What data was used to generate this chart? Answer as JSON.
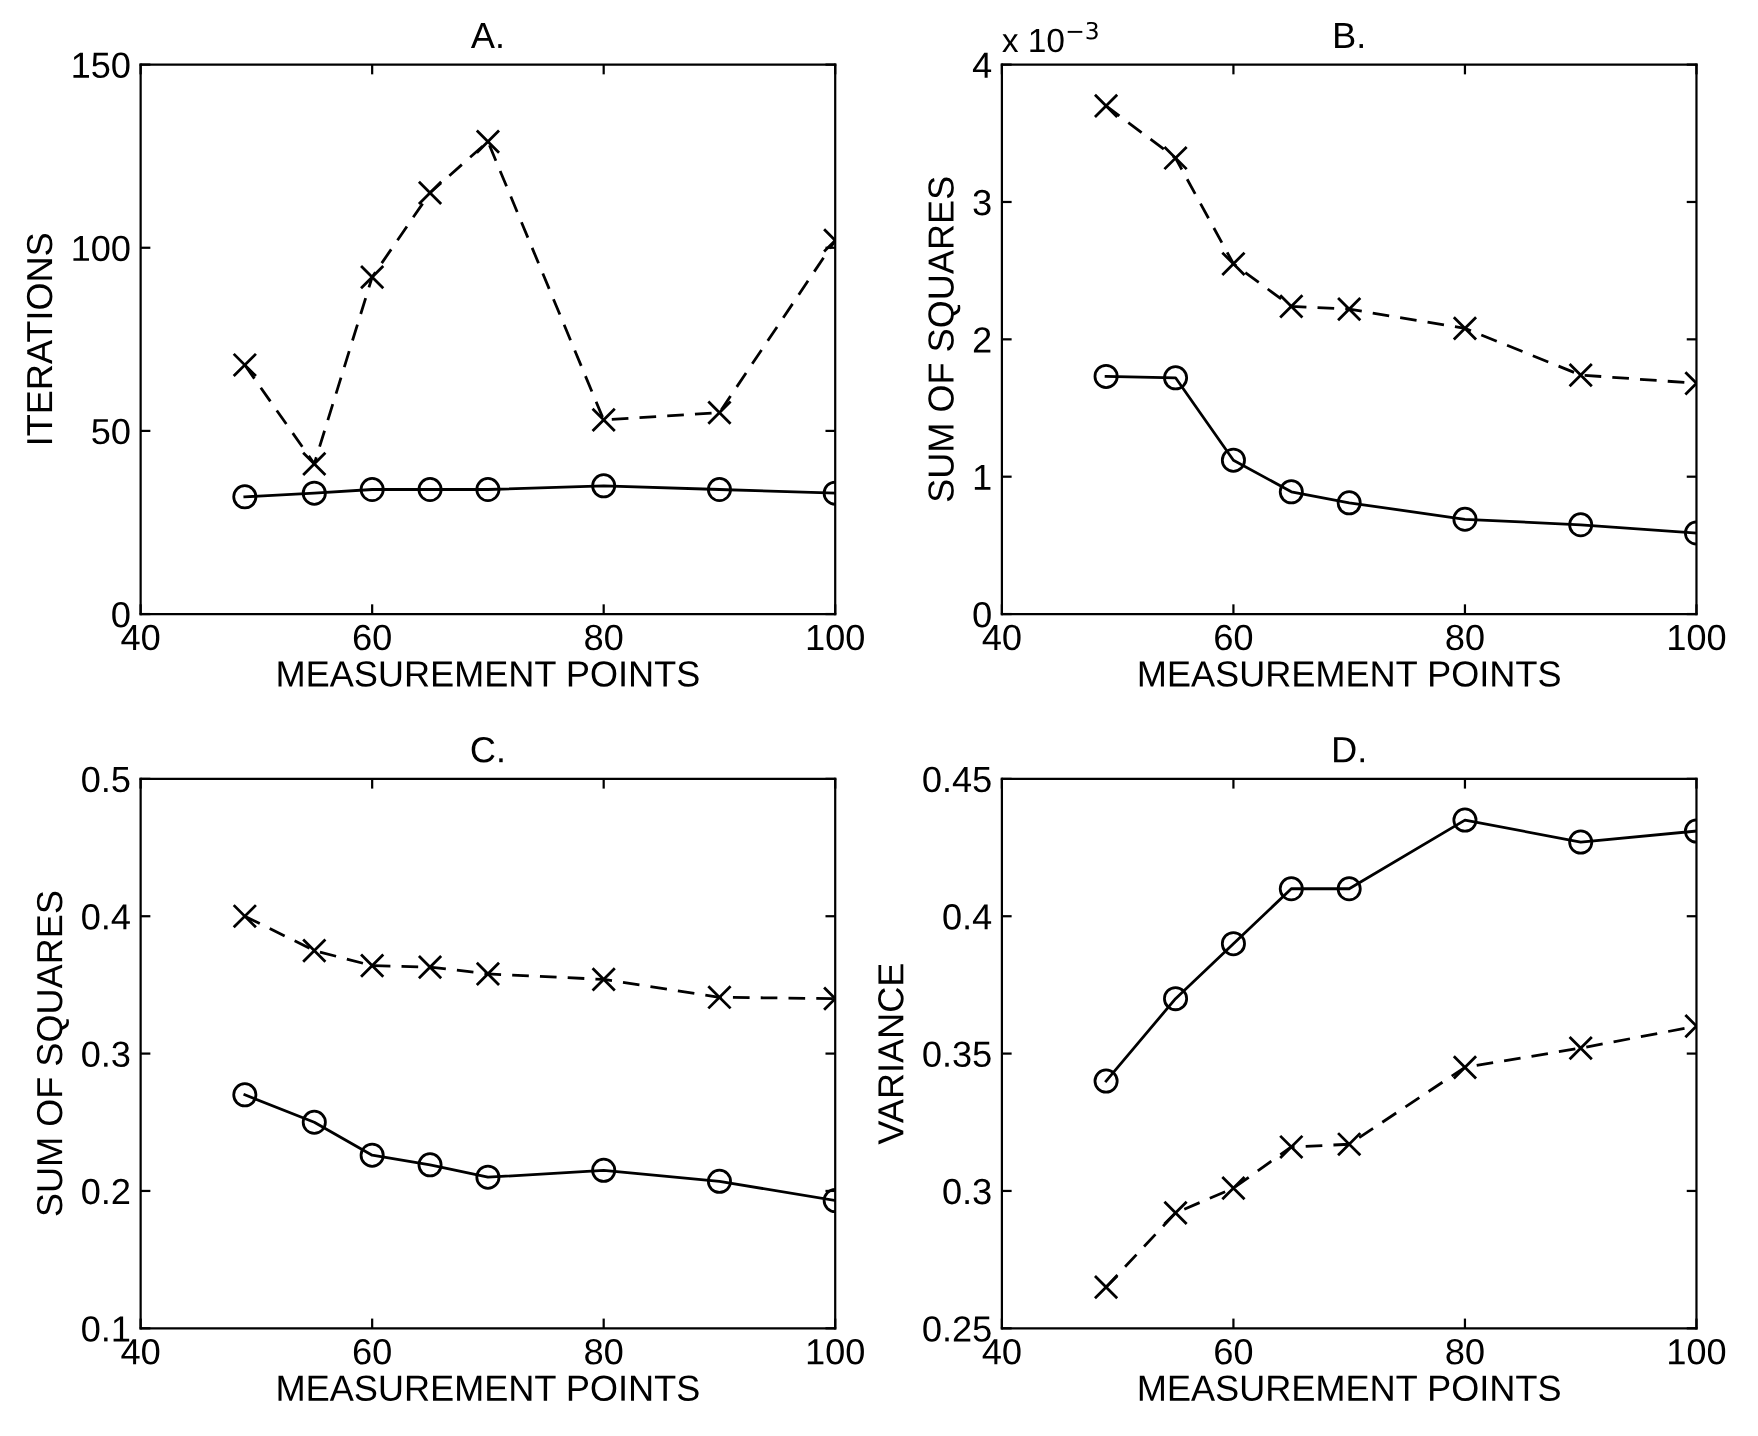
{
  "chart_data": [
    {
      "type": "line",
      "title": "A.",
      "xlabel": "MEASUREMENT POINTS",
      "ylabel": "ITERATIONS",
      "x": [
        49,
        55,
        60,
        65,
        70,
        80,
        90,
        100
      ],
      "xlim": [
        40,
        100
      ],
      "xticks": [
        40,
        60,
        80,
        100
      ],
      "ylim": [
        0,
        150
      ],
      "yticks": [
        0,
        50,
        100,
        150
      ],
      "grid": false,
      "legend": false,
      "series": [
        {
          "color": "#000000",
          "marker": "cross",
          "line_style": "dashed",
          "values": [
            68,
            41,
            92,
            115,
            129,
            53,
            55,
            102
          ]
        },
        {
          "color": "#000000",
          "marker": "circle",
          "line_style": "solid",
          "values": [
            32,
            33,
            34,
            34,
            34,
            35,
            34,
            33
          ]
        }
      ]
    },
    {
      "type": "line",
      "title": "B.",
      "xlabel": "MEASUREMENT POINTS",
      "ylabel": "SUM OF SQUARES",
      "annotations": [
        "x 10$^{−3}$"
      ],
      "x": [
        49,
        55,
        60,
        65,
        70,
        80,
        90,
        100
      ],
      "xlim": [
        40,
        100
      ],
      "xticks": [
        40,
        60,
        80,
        100
      ],
      "ylim": [
        0,
        4
      ],
      "yticks": [
        0,
        1,
        2,
        3,
        4
      ],
      "grid": false,
      "legend": false,
      "series": [
        {
          "color": "#000000",
          "marker": "cross",
          "line_style": "dashed",
          "values": [
            3.7,
            3.32,
            2.55,
            2.24,
            2.22,
            2.08,
            1.74,
            1.68
          ]
        },
        {
          "color": "#000000",
          "marker": "circle",
          "line_style": "solid",
          "values": [
            1.73,
            1.72,
            1.12,
            0.89,
            0.81,
            0.69,
            0.65,
            0.59
          ]
        }
      ]
    },
    {
      "type": "line",
      "title": "C.",
      "xlabel": "MEASUREMENT POINTS",
      "ylabel": "SUM OF SQUARES",
      "x": [
        49,
        55,
        60,
        65,
        70,
        80,
        90,
        100
      ],
      "xlim": [
        40,
        100
      ],
      "xticks": [
        40,
        60,
        80,
        100
      ],
      "ylim": [
        0.1,
        0.5
      ],
      "yticks": [
        0.1,
        0.2,
        0.3,
        0.4,
        0.5
      ],
      "grid": false,
      "legend": false,
      "series": [
        {
          "color": "#000000",
          "marker": "cross",
          "line_style": "dashed",
          "values": [
            0.4,
            0.375,
            0.364,
            0.363,
            0.358,
            0.354,
            0.341,
            0.34
          ]
        },
        {
          "color": "#000000",
          "marker": "circle",
          "line_style": "solid",
          "values": [
            0.27,
            0.25,
            0.226,
            0.219,
            0.21,
            0.215,
            0.207,
            0.193
          ]
        }
      ]
    },
    {
      "type": "line",
      "title": "D.",
      "xlabel": "MEASUREMENT POINTS",
      "ylabel": "VARIANCE",
      "x": [
        49,
        55,
        60,
        65,
        70,
        80,
        90,
        100
      ],
      "xlim": [
        40,
        100
      ],
      "xticks": [
        40,
        60,
        80,
        100
      ],
      "ylim": [
        0.25,
        0.45
      ],
      "yticks": [
        0.25,
        0.3,
        0.35,
        0.4,
        0.45
      ],
      "grid": false,
      "legend": false,
      "series": [
        {
          "color": "#000000",
          "marker": "circle",
          "line_style": "solid",
          "values": [
            0.34,
            0.37,
            0.39,
            0.41,
            0.41,
            0.435,
            0.427,
            0.431
          ]
        },
        {
          "color": "#000000",
          "marker": "cross",
          "line_style": "dashed",
          "values": [
            0.265,
            0.292,
            0.301,
            0.316,
            0.317,
            0.345,
            0.352,
            0.36
          ]
        }
      ]
    }
  ]
}
